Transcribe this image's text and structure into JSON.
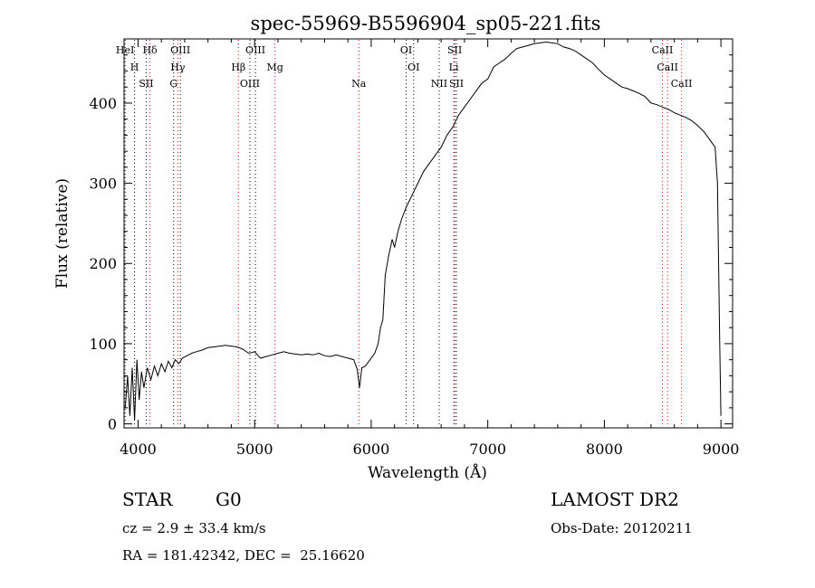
{
  "chart_data": {
    "type": "line",
    "title": "spec-55969-B5596904_sp05-221.fits",
    "xlabel": "Wavelength (Å)",
    "ylabel": "Flux (relative)",
    "xlim": [
      3880,
      9100
    ],
    "ylim": [
      -5,
      480
    ],
    "xticks": [
      4000,
      5000,
      6000,
      7000,
      8000,
      9000
    ],
    "yticks": [
      0,
      100,
      200,
      300,
      400
    ],
    "grid": false,
    "legend": "none",
    "series": [
      {
        "x": [
          3890,
          3910,
          3930,
          3950,
          3970,
          3990,
          4010,
          4030,
          4050,
          4080,
          4110,
          4140,
          4170,
          4200,
          4230,
          4260,
          4290,
          4320,
          4350,
          4380,
          4420,
          4460,
          4500,
          4550,
          4600,
          4650,
          4700,
          4750,
          4800,
          4850,
          4900,
          4950,
          5000,
          5050,
          5100,
          5150,
          5200,
          5250,
          5300,
          5350,
          5400,
          5450,
          5500,
          5550,
          5600,
          5650,
          5700,
          5750,
          5800,
          5850,
          5880,
          5900,
          5920,
          5950,
          6000,
          6030,
          6060,
          6080,
          6100,
          6120,
          6150,
          6180,
          6200,
          6230,
          6260,
          6300,
          6350,
          6400,
          6450,
          6500,
          6550,
          6600,
          6650,
          6700,
          6750,
          6800,
          6850,
          6900,
          6950,
          7000,
          7050,
          7100,
          7150,
          7200,
          7250,
          7300,
          7350,
          7400,
          7450,
          7500,
          7550,
          7600,
          7650,
          7700,
          7750,
          7800,
          7850,
          7900,
          7950,
          8000,
          8050,
          8100,
          8150,
          8200,
          8250,
          8300,
          8350,
          8400,
          8450,
          8500,
          8550,
          8600,
          8650,
          8700,
          8750,
          8800,
          8850,
          8900,
          8950,
          8970,
          8990,
          9000
        ],
        "y": [
          20,
          60,
          10,
          70,
          5,
          80,
          30,
          65,
          45,
          70,
          55,
          72,
          60,
          75,
          65,
          78,
          70,
          80,
          75,
          82,
          85,
          88,
          90,
          92,
          95,
          96,
          97,
          98,
          97,
          96,
          93,
          88,
          90,
          82,
          84,
          86,
          88,
          90,
          88,
          87,
          86,
          87,
          86,
          88,
          85,
          84,
          86,
          84,
          82,
          80,
          68,
          45,
          70,
          72,
          82,
          88,
          100,
          120,
          130,
          185,
          210,
          230,
          220,
          240,
          255,
          270,
          285,
          300,
          315,
          325,
          335,
          345,
          360,
          370,
          385,
          395,
          405,
          415,
          425,
          430,
          445,
          450,
          455,
          462,
          468,
          470,
          472,
          474,
          475,
          476,
          475,
          474,
          470,
          468,
          465,
          460,
          455,
          450,
          442,
          435,
          430,
          425,
          420,
          418,
          415,
          412,
          408,
          400,
          398,
          395,
          392,
          388,
          385,
          382,
          378,
          372,
          365,
          355,
          345,
          300,
          100,
          10
        ]
      }
    ],
    "spectral_lines": [
      {
        "label": "HeI",
        "wavelength": 3889,
        "color": "#000000"
      },
      {
        "label": "H",
        "wavelength": 3970,
        "color": "#000000"
      },
      {
        "label": "SII",
        "wavelength": 4070,
        "color": "#000000"
      },
      {
        "label": "Hδ",
        "wavelength": 4102,
        "color": "#ff0000"
      },
      {
        "label": "Hγ",
        "wavelength": 4341,
        "color": "#ff0000"
      },
      {
        "label": "G",
        "wavelength": 4305,
        "color": "#000000"
      },
      {
        "label": "OIII",
        "wavelength": 4363,
        "color": "#000000"
      },
      {
        "label": "Hβ",
        "wavelength": 4861,
        "color": "#ff0000"
      },
      {
        "label": "OIII",
        "wavelength": 4959,
        "color": "#000000"
      },
      {
        "label": "OIII",
        "wavelength": 5007,
        "color": "#000000"
      },
      {
        "label": "Mg",
        "wavelength": 5175,
        "color": "#ff0000"
      },
      {
        "label": "Na",
        "wavelength": 5894,
        "color": "#ff0000"
      },
      {
        "label": "OI",
        "wavelength": 6300,
        "color": "#000000"
      },
      {
        "label": "OI",
        "wavelength": 6364,
        "color": "#000000"
      },
      {
        "label": "NII",
        "wavelength": 6583,
        "color": "#000000"
      },
      {
        "label": "SII",
        "wavelength": 6716,
        "color": "#000000"
      },
      {
        "label": "Li",
        "wavelength": 6708,
        "color": "#ff0000"
      },
      {
        "label": "SII",
        "wavelength": 6731,
        "color": "#000000"
      },
      {
        "label": "CaII",
        "wavelength": 8498,
        "color": "#ff0000"
      },
      {
        "label": "CaII",
        "wavelength": 8542,
        "color": "#ff0000"
      },
      {
        "label": "CaII",
        "wavelength": 8662,
        "color": "#ff0000"
      }
    ]
  },
  "info": {
    "class": "STAR",
    "subclass": "G0",
    "survey": "LAMOST DR2",
    "cz": "cz = 2.9 ± 33.4 km/s",
    "obs_date": "Obs-Date: 20120211",
    "coords": "RA = 181.42342, DEC =  25.16620"
  }
}
